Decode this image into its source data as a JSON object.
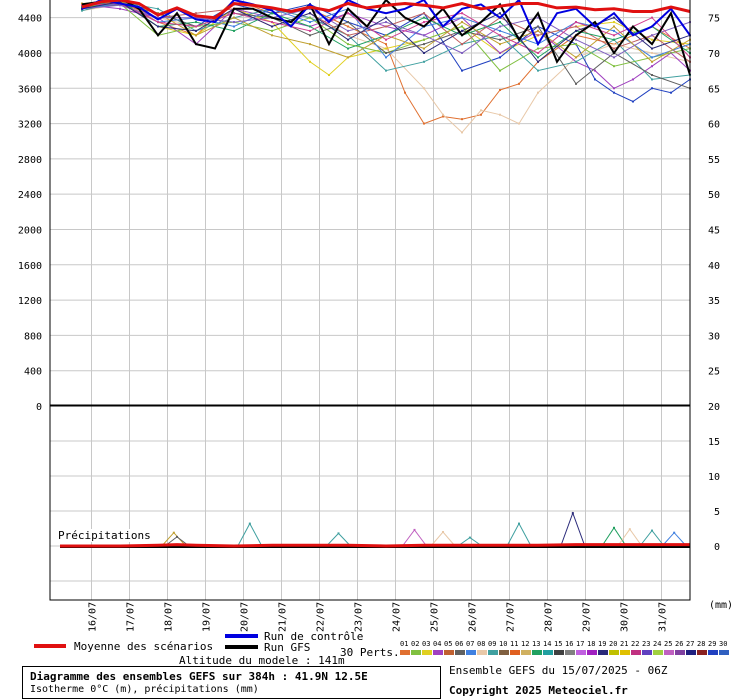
{
  "chart_data": [
    {
      "type": "line",
      "panel": "altitude_isotherme",
      "title": "Isotherme 0°C (m)",
      "y_left_ticks": [
        0,
        400,
        800,
        1200,
        1600,
        2000,
        2400,
        2800,
        3200,
        3600,
        4000,
        4400
      ],
      "y_right_ticks": [
        25,
        30,
        35,
        40,
        45,
        50,
        55,
        60,
        65,
        70,
        75
      ],
      "ylim": [
        0,
        4600
      ],
      "x_ticks": [
        "16/07",
        "17/07",
        "18/07",
        "19/07",
        "20/07",
        "21/07",
        "22/07",
        "23/07",
        "24/07",
        "25/07",
        "26/07",
        "27/07",
        "28/07",
        "29/07",
        "30/07",
        "31/07"
      ],
      "xlim_hours": [
        0,
        384
      ],
      "grid": true,
      "mean_series": {
        "name": "Moyenne des scénarios",
        "hours": [
          0,
          12,
          24,
          36,
          48,
          60,
          72,
          84,
          96,
          108,
          120,
          132,
          144,
          156,
          168,
          180,
          192,
          204,
          216,
          228,
          240,
          252,
          264,
          276,
          288,
          300,
          312,
          324,
          336,
          348,
          360,
          372,
          384
        ],
        "values": [
          4520,
          4580,
          4600,
          4560,
          4430,
          4510,
          4420,
          4400,
          4560,
          4540,
          4510,
          4470,
          4520,
          4480,
          4560,
          4510,
          4540,
          4560,
          4540,
          4510,
          4560,
          4500,
          4530,
          4560,
          4560,
          4510,
          4520,
          4490,
          4500,
          4470,
          4470,
          4520,
          4470
        ]
      },
      "control_series": {
        "name": "Run de contrôle",
        "hours": [
          0,
          12,
          24,
          36,
          48,
          60,
          72,
          84,
          96,
          108,
          120,
          132,
          144,
          156,
          168,
          180,
          192,
          204,
          216,
          228,
          240,
          252,
          264,
          276,
          288,
          300,
          312,
          324,
          336,
          348,
          360,
          372,
          384
        ],
        "values": [
          4500,
          4600,
          4560,
          4520,
          4380,
          4500,
          4380,
          4350,
          4600,
          4550,
          4480,
          4300,
          4550,
          4350,
          4600,
          4500,
          4450,
          4500,
          4600,
          4300,
          4500,
          4550,
          4400,
          4600,
          4100,
          4450,
          4500,
          4300,
          4450,
          4200,
          4300,
          4500,
          4200
        ]
      },
      "gfs_series": {
        "name": "Run GFS",
        "hours": [
          0,
          12,
          24,
          36,
          48,
          60,
          72,
          84,
          96,
          108,
          120,
          132,
          144,
          156,
          168,
          180,
          192,
          204,
          216,
          228,
          240,
          252,
          264,
          276,
          288,
          300,
          312,
          324,
          336,
          348,
          360,
          372,
          384
        ],
        "values": [
          4550,
          4580,
          4620,
          4500,
          4200,
          4450,
          4100,
          4050,
          4500,
          4500,
          4400,
          4350,
          4550,
          4100,
          4500,
          4300,
          4600,
          4400,
          4300,
          4500,
          4200,
          4350,
          4550,
          4150,
          4450,
          3900,
          4200,
          4350,
          4000,
          4300,
          4100,
          4450,
          3750
        ]
      },
      "perturbations": [
        {
          "name": "01",
          "color": "#e07030",
          "hours": [
            0,
            24,
            48,
            72,
            96,
            120,
            144,
            168,
            192,
            204,
            216,
            228,
            240,
            252,
            264,
            276,
            288,
            312,
            336,
            360,
            384
          ],
          "values": [
            4500,
            4600,
            4350,
            4200,
            4600,
            4450,
            4500,
            4300,
            4100,
            3550,
            3200,
            3280,
            3250,
            3300,
            3580,
            3650,
            3900,
            4200,
            4100,
            4300,
            4050
          ]
        },
        {
          "name": "02",
          "color": "#e8c8a8",
          "hours": [
            0,
            24,
            48,
            72,
            96,
            120,
            144,
            168,
            192,
            216,
            228,
            240,
            252,
            264,
            276,
            288,
            312,
            336,
            360,
            384
          ],
          "values": [
            4480,
            4550,
            4400,
            4300,
            4550,
            4500,
            4400,
            4200,
            4050,
            3600,
            3300,
            3100,
            3350,
            3300,
            3200,
            3550,
            3950,
            4100,
            4000,
            3900
          ]
        },
        {
          "name": "03",
          "color": "#e0d020",
          "hours": [
            0,
            24,
            48,
            72,
            96,
            120,
            144,
            156,
            168,
            192,
            216,
            240,
            264,
            288,
            312,
            336,
            360,
            384
          ],
          "values": [
            4520,
            4580,
            4300,
            4200,
            4500,
            4350,
            3900,
            3750,
            3950,
            4050,
            4150,
            4300,
            4000,
            4200,
            4300,
            4350,
            4150,
            4100
          ]
        },
        {
          "name": "04",
          "color": "#a040c0",
          "hours": [
            0,
            24,
            48,
            72,
            96,
            120,
            144,
            168,
            192,
            216,
            240,
            264,
            288,
            312,
            324,
            336,
            348,
            360,
            372,
            384
          ],
          "values": [
            4550,
            4500,
            4400,
            4100,
            4500,
            4400,
            4300,
            4450,
            4300,
            4200,
            4400,
            4000,
            4250,
            3900,
            3800,
            3600,
            3700,
            3850,
            4000,
            3800
          ]
        },
        {
          "name": "05",
          "color": "#2040c0",
          "hours": [
            0,
            24,
            48,
            72,
            96,
            120,
            144,
            168,
            192,
            216,
            240,
            264,
            288,
            312,
            324,
            336,
            348,
            360,
            372,
            384
          ],
          "values": [
            4500,
            4600,
            4450,
            4300,
            4550,
            4450,
            4550,
            4350,
            4200,
            4450,
            3800,
            3950,
            4300,
            4100,
            3700,
            3550,
            3450,
            3600,
            3550,
            3700
          ]
        },
        {
          "name": "06",
          "color": "#40a0a0",
          "hours": [
            0,
            24,
            48,
            72,
            96,
            120,
            144,
            168,
            192,
            216,
            240,
            264,
            288,
            312,
            336,
            360,
            384
          ],
          "values": [
            4480,
            4580,
            4500,
            4250,
            4400,
            4500,
            4400,
            4200,
            3800,
            3900,
            4100,
            4200,
            3800,
            3900,
            4150,
            3700,
            3750
          ]
        },
        {
          "name": "07",
          "color": "#80c040",
          "hours": [
            0,
            24,
            48,
            72,
            96,
            120,
            144,
            168,
            192,
            216,
            240,
            264,
            288,
            312,
            336,
            360,
            384
          ],
          "values": [
            4520,
            4560,
            4200,
            4300,
            4350,
            4250,
            4400,
            4100,
            4000,
            4150,
            4300,
            3800,
            4050,
            4100,
            3850,
            3950,
            4050
          ]
        },
        {
          "name": "08",
          "color": "#606060",
          "hours": [
            0,
            24,
            48,
            72,
            96,
            120,
            144,
            168,
            192,
            216,
            240,
            264,
            288,
            312,
            336,
            360,
            384
          ],
          "values": [
            4500,
            4550,
            4450,
            4300,
            4450,
            4400,
            4200,
            4350,
            4000,
            4100,
            4250,
            4150,
            4300,
            3650,
            4000,
            3750,
            3600
          ]
        },
        {
          "name": "09",
          "color": "#c06060",
          "hours": [
            0,
            24,
            48,
            72,
            96,
            120,
            144,
            168,
            192,
            216,
            240,
            264,
            288,
            312,
            336,
            360,
            384
          ],
          "values": [
            4540,
            4580,
            4400,
            4450,
            4500,
            4300,
            4450,
            4200,
            4300,
            4450,
            4100,
            4400,
            4200,
            4300,
            4050,
            4200,
            3900
          ]
        },
        {
          "name": "10",
          "color": "#4080e0",
          "hours": [
            0,
            24,
            48,
            72,
            96,
            120,
            144,
            168,
            192,
            216,
            240,
            264,
            288,
            312,
            336,
            360,
            384
          ],
          "values": [
            4500,
            4560,
            4350,
            4400,
            4300,
            4500,
            4350,
            4500,
            3950,
            4300,
            4400,
            4250,
            4100,
            4350,
            4250,
            3950,
            4100
          ]
        },
        {
          "name": "11",
          "color": "#20a060",
          "hours": [
            0,
            24,
            48,
            72,
            96,
            120,
            144,
            168,
            192,
            216,
            240,
            264,
            288,
            312,
            336,
            360,
            384
          ],
          "values": [
            4520,
            4600,
            4300,
            4350,
            4250,
            4450,
            4300,
            4050,
            4200,
            4400,
            4200,
            4350,
            3950,
            4250,
            4150,
            4300,
            4000
          ]
        },
        {
          "name": "12",
          "color": "#c0a030",
          "hours": [
            0,
            24,
            48,
            72,
            96,
            120,
            144,
            168,
            192,
            216,
            240,
            264,
            288,
            312,
            336,
            360,
            384
          ],
          "values": [
            4560,
            4580,
            4450,
            4200,
            4400,
            4200,
            4100,
            3950,
            4200,
            4050,
            4350,
            4100,
            4250,
            3950,
            4300,
            3900,
            4150
          ]
        },
        {
          "name": "13",
          "color": "#8060c0",
          "hours": [
            0,
            24,
            48,
            72,
            96,
            120,
            144,
            168,
            192,
            216,
            240,
            264,
            288,
            312,
            336,
            360,
            384
          ],
          "values": [
            4500,
            4540,
            4400,
            4400,
            4350,
            4400,
            4500,
            4250,
            4350,
            4200,
            4000,
            4300,
            4400,
            4150,
            3950,
            4200,
            4350
          ]
        },
        {
          "name": "14",
          "color": "#d04090",
          "hours": [
            0,
            24,
            48,
            72,
            96,
            120,
            144,
            168,
            192,
            216,
            240,
            264,
            288,
            312,
            336,
            360,
            384
          ],
          "values": [
            4540,
            4560,
            4350,
            4300,
            4450,
            4350,
            4250,
            4450,
            4150,
            4350,
            4450,
            4200,
            4000,
            4350,
            4200,
            4400,
            3950
          ]
        },
        {
          "name": "15",
          "color": "#2a2a7a",
          "hours": [
            0,
            24,
            48,
            72,
            96,
            120,
            144,
            168,
            192,
            216,
            240,
            264,
            288,
            312,
            336,
            360,
            384
          ],
          "values": [
            4500,
            4580,
            4300,
            4250,
            4500,
            4300,
            4450,
            4150,
            4400,
            4000,
            4250,
            4450,
            3900,
            4250,
            4400,
            4050,
            4200
          ]
        }
      ]
    },
    {
      "type": "line",
      "panel": "precipitations",
      "title": "Précipitations",
      "y_right_ticks": [
        0,
        5,
        10,
        15,
        20
      ],
      "ylim": [
        -7.8,
        20
      ],
      "unit_label": "(mm)",
      "x_ticks": [
        "16/07",
        "17/07",
        "18/07",
        "19/07",
        "20/07",
        "21/07",
        "22/07",
        "23/07",
        "24/07",
        "25/07",
        "26/07",
        "27/07",
        "28/07",
        "29/07",
        "30/07",
        "31/07"
      ],
      "grid": true,
      "mean_series": {
        "name": "Moyenne des scénarios",
        "hours": [
          0,
          24,
          48,
          60,
          72,
          96,
          120,
          144,
          168,
          192,
          216,
          240,
          264,
          288,
          312,
          336,
          360,
          384
        ],
        "values": [
          0,
          0,
          0.1,
          0.2,
          0.1,
          0,
          0.1,
          0.1,
          0.1,
          0,
          0.1,
          0.1,
          0.1,
          0.1,
          0.2,
          0.2,
          0.2,
          0.2
        ]
      },
      "spikes": [
        {
          "color": "#c0a030",
          "hour": 58,
          "value": 1.9
        },
        {
          "color": "#606060",
          "hour": 60,
          "value": 1.3
        },
        {
          "color": "#40a0a0",
          "hour": 106,
          "value": 3.2
        },
        {
          "color": "#40a0a0",
          "hour": 162,
          "value": 1.8
        },
        {
          "color": "#c060c0",
          "hour": 210,
          "value": 2.3
        },
        {
          "color": "#e8c8a8",
          "hour": 228,
          "value": 2.0
        },
        {
          "color": "#40a0a0",
          "hour": 245,
          "value": 1.2
        },
        {
          "color": "#40a0a0",
          "hour": 276,
          "value": 3.2
        },
        {
          "color": "#2a2a7a",
          "hour": 310,
          "value": 4.7
        },
        {
          "color": "#20a060",
          "hour": 336,
          "value": 2.6
        },
        {
          "color": "#e8c8a8",
          "hour": 346,
          "value": 2.4
        },
        {
          "color": "#40a0a0",
          "hour": 360,
          "value": 2.2
        },
        {
          "color": "#4080e0",
          "hour": 374,
          "value": 1.9
        }
      ]
    }
  ],
  "legend": {
    "mean_label": "Moyenne des scénarios",
    "control_label": "Run de contrôle",
    "gfs_label": "Run GFS",
    "perts_label": "30 Perts.",
    "altitude_label": "Altitude du modele : 141m",
    "pert_numbers": [
      "01",
      "02",
      "03",
      "04",
      "05",
      "06",
      "07",
      "08",
      "09",
      "10",
      "11",
      "12",
      "13",
      "14",
      "15",
      "16",
      "17",
      "18",
      "19",
      "20",
      "21",
      "22",
      "23",
      "24",
      "25",
      "26",
      "27",
      "28",
      "29",
      "30"
    ],
    "pert_colors": [
      "#e07030",
      "#80c040",
      "#e0d020",
      "#a040c0",
      "#c06030",
      "#606060",
      "#4080e0",
      "#e8c8a8",
      "#40a0a0",
      "#806040",
      "#e06020",
      "#d0b060",
      "#20a060",
      "#20a0a0",
      "#404040",
      "#808080",
      "#c060e0",
      "#a020c0",
      "#2a2a7a",
      "#c0c000",
      "#e0c000",
      "#c03080",
      "#6040c0",
      "#a0d040",
      "#c060c0",
      "#8040a0",
      "#202080",
      "#8a2020",
      "#2040c0",
      "#3060c0"
    ]
  },
  "title_box": {
    "line1": "Diagramme des ensembles GEFS sur 384h : 41.9N 12.5E",
    "line2": "Isotherme 0°C (m), précipitations (mm)"
  },
  "run_info": "Ensemble GEFS du 15/07/2025 - 06Z",
  "copyright": "Copyright 2025 Meteociel.fr",
  "colors": {
    "mean": "#e01010",
    "control": "#0000e0",
    "gfs": "#000000",
    "grid": "#c8c8c8"
  }
}
